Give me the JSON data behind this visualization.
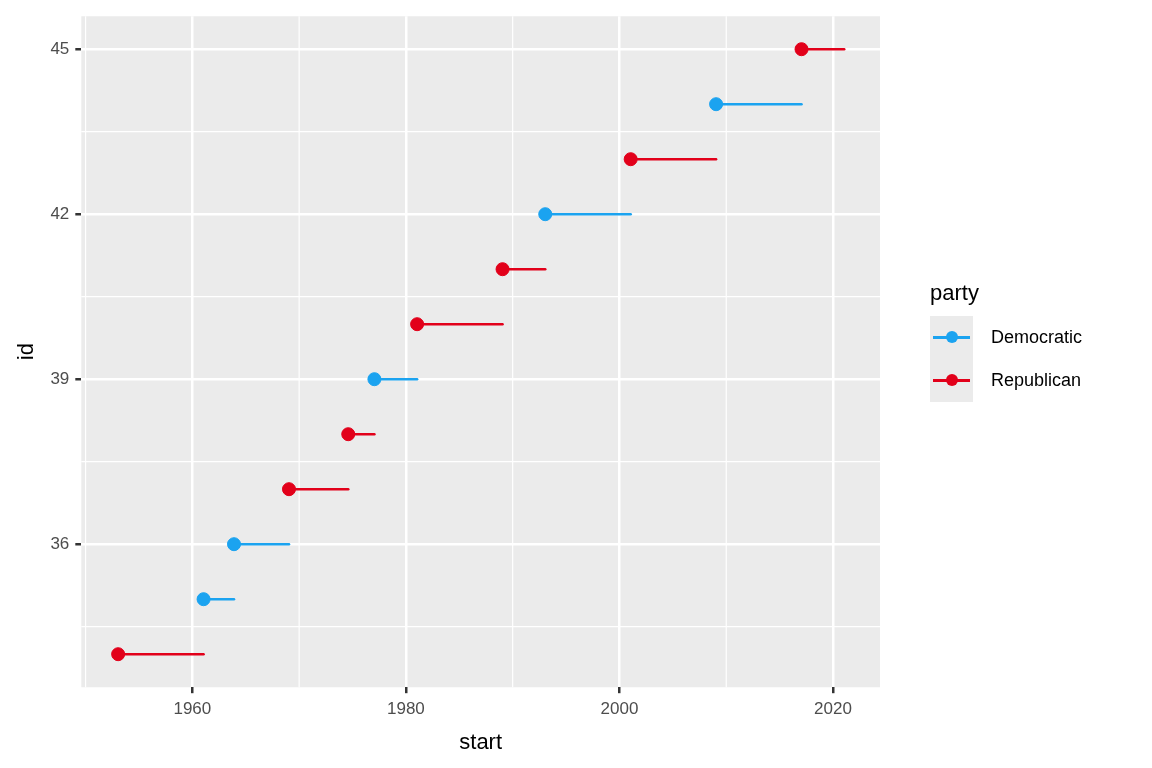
{
  "chart_data": {
    "type": "scatter",
    "xlabel": "start",
    "ylabel": "id",
    "legend_title": "party",
    "series": [
      {
        "name": "Democratic",
        "color": "#1ba3f0",
        "x": [
          1961.05,
          1963.9,
          1977.05,
          1993.05,
          2009.05
        ],
        "values": [
          35,
          36,
          39,
          42,
          44
        ],
        "xerrors": [
          [
            1961.05,
            1963.9
          ],
          [
            1963.9,
            1969.05
          ],
          [
            1977.05,
            1981.05
          ],
          [
            1993.05,
            2001.05
          ],
          [
            2009.05,
            2017.05
          ]
        ]
      },
      {
        "name": "Republican",
        "color": "#e2001a",
        "x": [
          1953.05,
          1969.05,
          1974.6,
          1981.05,
          1989.05,
          2001.05,
          2017.05
        ],
        "values": [
          34,
          37,
          38,
          40,
          41,
          43,
          45
        ],
        "xerrors": [
          [
            1953.05,
            1961.05
          ],
          [
            1969.05,
            1974.6
          ],
          [
            1974.6,
            1977.05
          ],
          [
            1981.05,
            1989.05
          ],
          [
            1989.05,
            1993.05
          ],
          [
            2001.05,
            2009.05
          ],
          [
            2017.05,
            2021.05
          ]
        ]
      }
    ],
    "xlim": [
      1949.6,
      2024.4
    ],
    "xticks": [
      1960,
      1980,
      2000,
      2020
    ],
    "ylim": [
      33.4,
      45.6
    ],
    "yticks": [
      36,
      39,
      42,
      45
    ],
    "grid": true,
    "legend": "right",
    "marker": "circle"
  }
}
